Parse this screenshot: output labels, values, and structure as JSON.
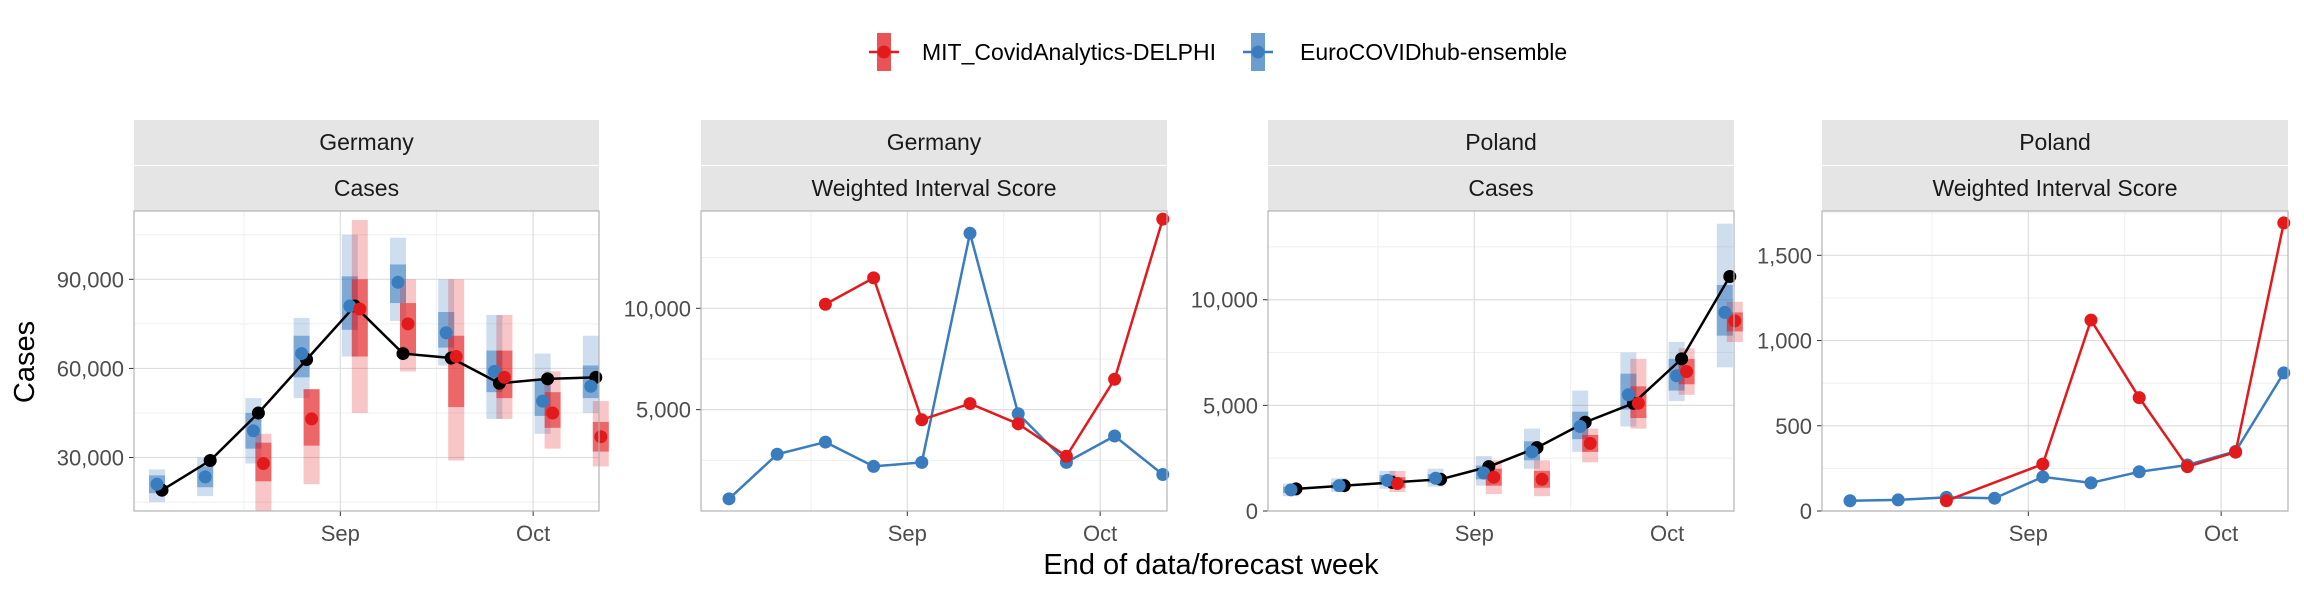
{
  "legend": {
    "items": [
      {
        "label": "MIT_CovidAnalytics-DELPHI",
        "color": "#E31A1C"
      },
      {
        "label": "EuroCOVIDhub-ensemble",
        "color": "#3A7DBE"
      }
    ]
  },
  "axes": {
    "xlabel": "End of data/forecast week",
    "ylabel": "Cases"
  },
  "colors": {
    "delphi": "#E31A1C",
    "ensemble": "#3A7DBE",
    "observed": "#000000",
    "strip_bg": "#E5E5E5",
    "grid_major": "#DEDEDE",
    "grid_minor": "#EFEFEF"
  },
  "chart_data": [
    {
      "type": "line",
      "strip": [
        "Germany",
        "Cases"
      ],
      "ylim": [
        12000,
        113000
      ],
      "y_ticks": [
        30000,
        60000,
        90000
      ],
      "y_tick_labels": [
        "30,000",
        "60,000",
        "90,000"
      ],
      "x_ticks": [
        "Sep",
        "Oct"
      ],
      "weeks": [
        "Aug 08",
        "Aug 15",
        "Aug 22",
        "Aug 29",
        "Sep 05",
        "Sep 12",
        "Sep 19",
        "Sep 26",
        "Oct 03",
        "Oct 10"
      ],
      "observed": [
        19000,
        29000,
        45000,
        63000,
        81000,
        65000,
        63500,
        55000,
        56500,
        57000
      ],
      "forecasts": [
        {
          "model": "EuroCOVIDhub-ensemble",
          "points": [
            {
              "week": 0,
              "median": 21000,
              "inner": [
                18000,
                24000
              ],
              "outer": [
                15000,
                26000
              ]
            },
            {
              "week": 1,
              "median": 23500,
              "inner": [
                20000,
                27000
              ],
              "outer": [
                17000,
                30000
              ]
            },
            {
              "week": 2,
              "median": 39000,
              "inner": [
                33000,
                45000
              ],
              "outer": [
                28000,
                50000
              ]
            },
            {
              "week": 3,
              "median": 65000,
              "inner": [
                57000,
                71000
              ],
              "outer": [
                50000,
                77000
              ]
            },
            {
              "week": 4,
              "median": 81000,
              "inner": [
                73000,
                91000
              ],
              "outer": [
                64000,
                105000
              ]
            },
            {
              "week": 5,
              "median": 89000,
              "inner": [
                82000,
                95000
              ],
              "outer": [
                76000,
                104000
              ]
            },
            {
              "week": 6,
              "median": 72000,
              "inner": [
                67000,
                79000
              ],
              "outer": [
                61000,
                90000
              ]
            },
            {
              "week": 7,
              "median": 59000,
              "inner": [
                52000,
                66000
              ],
              "outer": [
                43000,
                78000
              ]
            },
            {
              "week": 8,
              "median": 49000,
              "inner": [
                44000,
                56000
              ],
              "outer": [
                38000,
                65000
              ]
            },
            {
              "week": 9,
              "median": 54000,
              "inner": [
                50000,
                61000
              ],
              "outer": [
                45000,
                71000
              ]
            }
          ]
        },
        {
          "model": "MIT_CovidAnalytics-DELPHI",
          "points": [
            {
              "week": 2,
              "median": 28000,
              "inner": [
                22000,
                35000
              ],
              "outer": [
                12000,
                38000
              ]
            },
            {
              "week": 3,
              "median": 43000,
              "inner": [
                34000,
                53000
              ],
              "outer": [
                21000,
                53000
              ]
            },
            {
              "week": 4,
              "median": 80000,
              "inner": [
                64000,
                90000
              ],
              "outer": [
                45000,
                110000
              ]
            },
            {
              "week": 5,
              "median": 75000,
              "inner": [
                65000,
                82000
              ],
              "outer": [
                59000,
                90000
              ]
            },
            {
              "week": 6,
              "median": 64000,
              "inner": [
                47000,
                71000
              ],
              "outer": [
                29000,
                90000
              ]
            },
            {
              "week": 7,
              "median": 57000,
              "inner": [
                50000,
                66000
              ],
              "outer": [
                43000,
                78000
              ]
            },
            {
              "week": 8,
              "median": 45000,
              "inner": [
                40000,
                52000
              ],
              "outer": [
                33000,
                59000
              ]
            },
            {
              "week": 9,
              "median": 37000,
              "inner": [
                32000,
                42000
              ],
              "outer": [
                27000,
                49000
              ]
            }
          ]
        }
      ]
    },
    {
      "type": "line",
      "strip": [
        "Germany",
        "Weighted Interval Score"
      ],
      "ylim": [
        0,
        14800
      ],
      "y_ticks": [
        5000,
        10000
      ],
      "y_tick_labels": [
        "5,000",
        "10,000"
      ],
      "x_ticks": [
        "Sep",
        "Oct"
      ],
      "weeks": [
        "Aug 08",
        "Aug 15",
        "Aug 22",
        "Aug 29",
        "Sep 05",
        "Sep 12",
        "Sep 19",
        "Sep 26",
        "Oct 03",
        "Oct 10"
      ],
      "series": [
        {
          "name": "EuroCOVIDhub-ensemble",
          "values": [
            600,
            2800,
            3400,
            2200,
            2400,
            13700,
            4800,
            2400,
            3700,
            1800
          ]
        },
        {
          "name": "MIT_CovidAnalytics-DELPHI",
          "values": [
            null,
            null,
            10200,
            11500,
            4500,
            5300,
            4300,
            2700,
            6500,
            14400
          ]
        }
      ]
    },
    {
      "type": "line",
      "strip": [
        "Poland",
        "Cases"
      ],
      "ylim": [
        0,
        14200
      ],
      "y_ticks": [
        0,
        5000,
        10000
      ],
      "y_tick_labels": [
        "0",
        "5,000",
        "10,000"
      ],
      "x_ticks": [
        "Sep",
        "Oct"
      ],
      "weeks": [
        "Aug 08",
        "Aug 15",
        "Aug 22",
        "Aug 29",
        "Sep 05",
        "Sep 12",
        "Sep 19",
        "Sep 26",
        "Oct 03",
        "Oct 10"
      ],
      "observed": [
        1050,
        1200,
        1350,
        1500,
        2100,
        3000,
        4200,
        5100,
        7200,
        11100
      ],
      "forecasts": [
        {
          "model": "EuroCOVIDhub-ensemble",
          "points": [
            {
              "week": 0,
              "median": 1000,
              "inner": [
                850,
                1150
              ],
              "outer": [
                700,
                1300
              ]
            },
            {
              "week": 1,
              "median": 1200,
              "inner": [
                1050,
                1350
              ],
              "outer": [
                900,
                1550
              ]
            },
            {
              "week": 2,
              "median": 1450,
              "inner": [
                1250,
                1700
              ],
              "outer": [
                1050,
                1900
              ]
            },
            {
              "week": 3,
              "median": 1550,
              "inner": [
                1350,
                1750
              ],
              "outer": [
                1150,
                2000
              ]
            },
            {
              "week": 4,
              "median": 1800,
              "inner": [
                1500,
                2150
              ],
              "outer": [
                1200,
                2600
              ]
            },
            {
              "week": 5,
              "median": 2800,
              "inner": [
                2400,
                3300
              ],
              "outer": [
                2000,
                3900
              ]
            },
            {
              "week": 6,
              "median": 4000,
              "inner": [
                3400,
                4700
              ],
              "outer": [
                2800,
                5700
              ]
            },
            {
              "week": 7,
              "median": 5500,
              "inner": [
                4800,
                6500
              ],
              "outer": [
                4000,
                7500
              ]
            },
            {
              "week": 8,
              "median": 6400,
              "inner": [
                5700,
                7200
              ],
              "outer": [
                5200,
                8000
              ]
            },
            {
              "week": 9,
              "median": 9400,
              "inner": [
                8300,
                10700
              ],
              "outer": [
                6800,
                13600
              ]
            }
          ]
        },
        {
          "model": "MIT_CovidAnalytics-DELPHI",
          "points": [
            {
              "week": 2,
              "median": 1300,
              "inner": [
                1100,
                1600
              ],
              "outer": [
                900,
                1900
              ]
            },
            {
              "week": 4,
              "median": 1600,
              "inner": [
                1200,
                2000
              ],
              "outer": [
                800,
                2400
              ]
            },
            {
              "week": 5,
              "median": 1500,
              "inner": [
                1100,
                1900
              ],
              "outer": [
                700,
                2400
              ]
            },
            {
              "week": 6,
              "median": 3200,
              "inner": [
                2800,
                3600
              ],
              "outer": [
                2300,
                3900
              ]
            },
            {
              "week": 7,
              "median": 5100,
              "inner": [
                4400,
                5900
              ],
              "outer": [
                3900,
                7200
              ]
            },
            {
              "week": 8,
              "median": 6600,
              "inner": [
                6000,
                7200
              ],
              "outer": [
                5500,
                7700
              ]
            },
            {
              "week": 9,
              "median": 9000,
              "inner": [
                8500,
                9400
              ],
              "outer": [
                8000,
                9900
              ]
            }
          ]
        }
      ]
    },
    {
      "type": "line",
      "strip": [
        "Poland",
        "Weighted Interval Score"
      ],
      "ylim": [
        0,
        1760
      ],
      "y_ticks": [
        0,
        500,
        1000,
        1500
      ],
      "y_tick_labels": [
        "0",
        "500",
        "1,000",
        "1,500"
      ],
      "x_ticks": [
        "Sep",
        "Oct"
      ],
      "weeks": [
        "Aug 08",
        "Aug 15",
        "Aug 22",
        "Aug 29",
        "Sep 05",
        "Sep 12",
        "Sep 19",
        "Sep 26",
        "Oct 03",
        "Oct 10"
      ],
      "series": [
        {
          "name": "EuroCOVIDhub-ensemble",
          "values": [
            60,
            65,
            80,
            75,
            200,
            165,
            230,
            270,
            350,
            810
          ]
        },
        {
          "name": "MIT_CovidAnalytics-DELPHI",
          "values": [
            null,
            null,
            60,
            null,
            275,
            1120,
            665,
            260,
            345,
            1690
          ]
        }
      ]
    }
  ]
}
